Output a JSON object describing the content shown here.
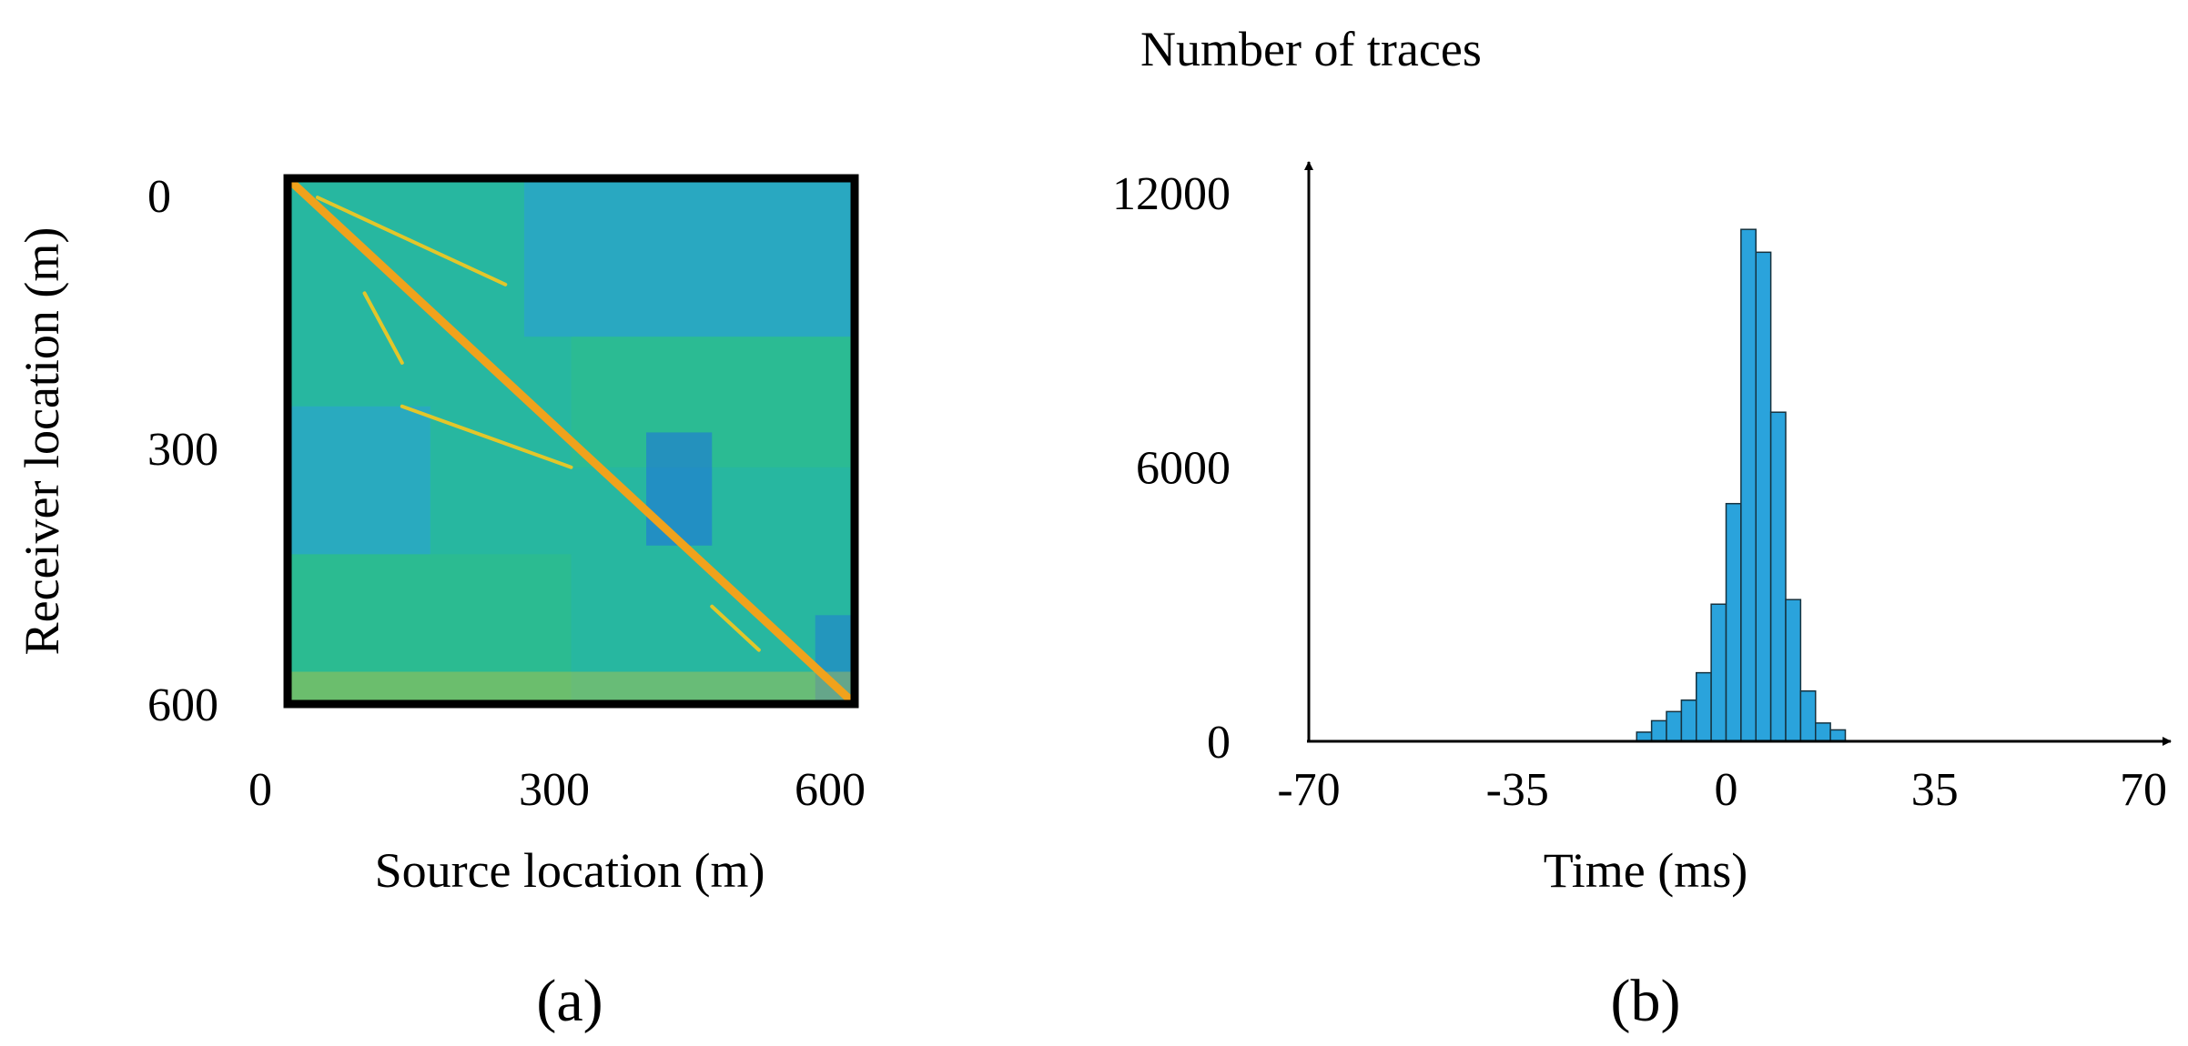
{
  "panel_a": {
    "caption": "(a)",
    "xlabel": "Source location (m)",
    "ylabel": "Receiver location (m)",
    "x_ticks": [
      "0",
      "300",
      "600"
    ],
    "y_ticks": [
      "0",
      "300",
      "600"
    ],
    "colors": {
      "background": "#27b7a0",
      "green": "#2fc085",
      "blue_region": "#2aa6c7",
      "deep_blue": "#1f6fe0",
      "yellow": "#e3c62a",
      "orange": "#f0a21c",
      "frame": "#000000"
    }
  },
  "panel_b": {
    "caption": "(b)",
    "bar_color": "#2aa3dc",
    "bar_edge": "#16323f"
  },
  "chart_data": [
    {
      "type": "heatmap",
      "title": "",
      "xlabel": "Source location (m)",
      "ylabel": "Receiver location (m)",
      "xlim": [
        0,
        600
      ],
      "ylim": [
        0,
        600
      ],
      "y_axis_inverted": true,
      "x_ticks": [
        0,
        300,
        600
      ],
      "y_ticks": [
        0,
        300,
        600
      ],
      "features": [
        {
          "kind": "main-diagonal",
          "from": [
            0,
            0
          ],
          "to": [
            600,
            600
          ],
          "color": "orange"
        },
        {
          "kind": "upper-branch",
          "from": [
            30,
            20
          ],
          "to": [
            230,
            120
          ],
          "color": "yellow"
        },
        {
          "kind": "lower-branch",
          "from": [
            80,
            130
          ],
          "to": [
            120,
            210
          ],
          "color": "yellow"
        },
        {
          "kind": "lower-branch",
          "from": [
            120,
            260
          ],
          "to": [
            300,
            330
          ],
          "color": "yellow"
        },
        {
          "kind": "lower-branch",
          "from": [
            450,
            490
          ],
          "to": [
            500,
            540
          ],
          "color": "yellow"
        }
      ]
    },
    {
      "type": "bar",
      "title": "",
      "ylabel": "Number of traces",
      "xlabel": "Time (ms)",
      "xlim": [
        -70,
        70
      ],
      "ylim": [
        0,
        12000
      ],
      "x_ticks": [
        -70,
        -35,
        0,
        35,
        70
      ],
      "y_ticks": [
        0,
        6000,
        12000
      ],
      "bin_width": 2.5,
      "bin_starts": [
        -15,
        -12.5,
        -10,
        -7.5,
        -5,
        -2.5,
        0,
        2.5,
        5,
        7.5,
        10,
        12.5,
        15,
        17.5
      ],
      "values": [
        200,
        450,
        650,
        900,
        1500,
        3000,
        5200,
        11200,
        10700,
        7200,
        3100,
        1100,
        400,
        250
      ]
    }
  ]
}
